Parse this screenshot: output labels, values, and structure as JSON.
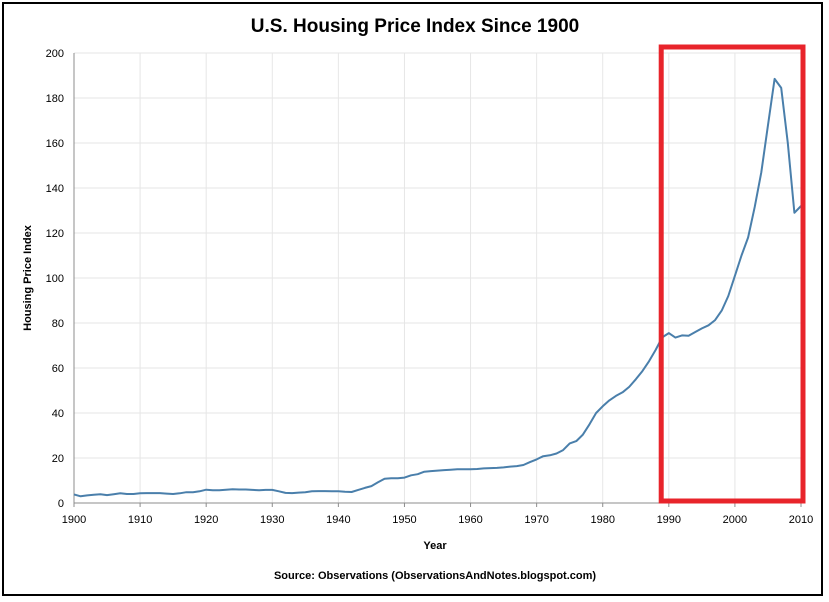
{
  "chart_data": {
    "type": "line",
    "title": "U.S. Housing Price Index Since 1900",
    "xlabel": "Year",
    "ylabel": "Housing Price Index",
    "source": "Source: Observations  (ObservationsAndNotes.blogspot.com)",
    "xlim": [
      1900,
      2010
    ],
    "ylim": [
      0,
      200
    ],
    "x_ticks": [
      1900,
      1910,
      1920,
      1930,
      1940,
      1950,
      1960,
      1970,
      1980,
      1990,
      2000,
      2010
    ],
    "y_ticks": [
      0,
      20,
      40,
      60,
      80,
      100,
      120,
      140,
      160,
      180,
      200
    ],
    "grid": true,
    "line_color": "#4a7fab",
    "highlight_color": "#e8242b",
    "highlight_range": {
      "x_from": 1989,
      "x_to": 2010
    },
    "series": [
      {
        "x": [
          1900,
          1901,
          1902,
          1903,
          1904,
          1905,
          1906,
          1907,
          1908,
          1909,
          1910,
          1911,
          1912,
          1913,
          1914,
          1915,
          1916,
          1917,
          1918,
          1919,
          1920,
          1921,
          1922,
          1923,
          1924,
          1925,
          1926,
          1927,
          1928,
          1929,
          1930,
          1931,
          1932,
          1933,
          1934,
          1935,
          1936,
          1937,
          1938,
          1939,
          1940,
          1941,
          1942,
          1943,
          1944,
          1945,
          1946,
          1947,
          1948,
          1949,
          1950,
          1951,
          1952,
          1953,
          1954,
          1955,
          1956,
          1957,
          1958,
          1959,
          1960,
          1961,
          1962,
          1963,
          1964,
          1965,
          1966,
          1967,
          1968,
          1969,
          1970,
          1971,
          1972,
          1973,
          1974,
          1975,
          1976,
          1977,
          1978,
          1979,
          1980,
          1981,
          1982,
          1983,
          1984,
          1985,
          1986,
          1987,
          1988,
          1989,
          1990,
          1991,
          1992,
          1993,
          1994,
          1995,
          1996,
          1997,
          1998,
          1999,
          2000,
          2001,
          2002,
          2003,
          2004,
          2005,
          2006,
          2007,
          2008,
          2009,
          2010
        ],
        "values": [
          3.8,
          3.0,
          3.4,
          3.7,
          3.9,
          3.5,
          3.9,
          4.3,
          4.0,
          4.0,
          4.3,
          4.4,
          4.4,
          4.4,
          4.2,
          4.0,
          4.3,
          4.8,
          4.8,
          5.2,
          5.9,
          5.7,
          5.7,
          5.9,
          6.1,
          6.0,
          6.0,
          5.8,
          5.7,
          5.8,
          5.8,
          5.2,
          4.5,
          4.4,
          4.6,
          4.8,
          5.2,
          5.3,
          5.3,
          5.2,
          5.2,
          5.0,
          4.9,
          5.8,
          6.7,
          7.5,
          9.2,
          10.8,
          11.0,
          11.0,
          11.3,
          12.3,
          12.8,
          13.9,
          14.2,
          14.4,
          14.6,
          14.8,
          15.0,
          15.0,
          15.0,
          15.1,
          15.4,
          15.5,
          15.6,
          15.8,
          16.2,
          16.4,
          16.9,
          18.2,
          19.4,
          20.8,
          21.2,
          22.0,
          23.5,
          26.5,
          27.5,
          30.4,
          35.0,
          40.0,
          43.0,
          45.6,
          47.6,
          49.2,
          51.6,
          55.0,
          58.6,
          63.0,
          68.0,
          73.6,
          75.5,
          73.5,
          74.5,
          74.3,
          76.0,
          77.6,
          79.0,
          81.3,
          85.5,
          92.0,
          101.0,
          110.0,
          118.0,
          131.5,
          147.0,
          168.0,
          188.5,
          184.5,
          160.0,
          129.0,
          132.0
        ]
      }
    ]
  }
}
